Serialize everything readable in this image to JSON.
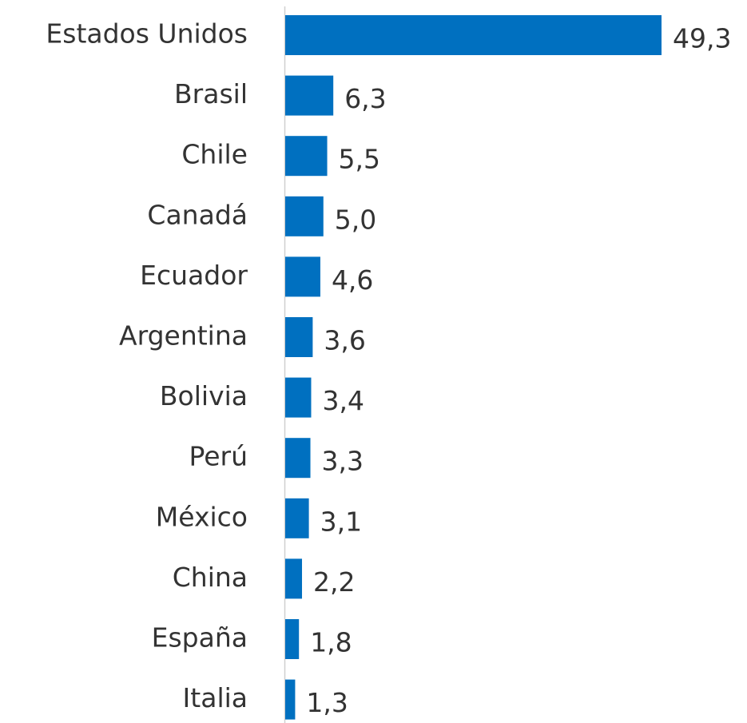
{
  "chart_data": {
    "type": "bar",
    "orientation": "horizontal",
    "categories": [
      "Estados Unidos",
      "Brasil",
      "Chile",
      "Canadá",
      "Ecuador",
      "Argentina",
      "Bolivia",
      "Perú",
      "México",
      "China",
      "España",
      "Italia"
    ],
    "values": [
      49.3,
      6.3,
      5.5,
      5.0,
      4.6,
      3.6,
      3.4,
      3.3,
      3.1,
      2.2,
      1.8,
      1.3
    ],
    "value_labels": [
      "49,3",
      "6,3",
      "5,5",
      "5,0",
      "4,6",
      "3,6",
      "3,4",
      "3,3",
      "3,1",
      "2,2",
      "1,8",
      "1,3"
    ],
    "color": "#0070c0"
  }
}
